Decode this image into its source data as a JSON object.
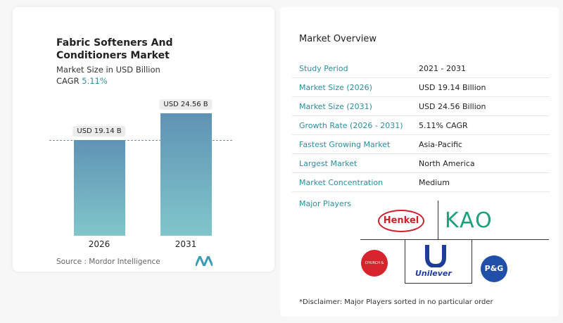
{
  "chart_data": {
    "type": "bar",
    "title": "Fabric Softeners And Conditioners Market",
    "subtitle": "Market Size in USD Billion",
    "cagr_label": "CAGR",
    "cagr_value": "5.11%",
    "categories": [
      "2026",
      "2031"
    ],
    "values": [
      19.14,
      24.56
    ],
    "value_labels": [
      "USD 19.14 B",
      "USD 24.56 B"
    ],
    "color": "#6aa6bd",
    "source": "Source :  Mordor Intelligence"
  },
  "overview": {
    "title": "Market Overview",
    "rows": [
      [
        "Study Period",
        "2021 - 2031"
      ],
      [
        "Market Size (2026)",
        "USD 19.14 Billion"
      ],
      [
        "Market Size (2031)",
        "USD 24.56 Billion"
      ],
      [
        "Growth Rate (2026 - 2031)",
        "5.11% CAGR"
      ],
      [
        "Fastest Growing Market",
        "Asia-Pacific"
      ],
      [
        "Largest Market",
        "North America"
      ],
      [
        "Market Concentration",
        "Medium"
      ]
    ]
  },
  "major_players": {
    "title": "Major Players",
    "logos": [
      "Henkel",
      "KAO",
      "CHURCH & DWIGHT",
      "Unilever",
      "P&G"
    ]
  },
  "disclaimer": "*Disclaimer: Major Players sorted in no particular order"
}
